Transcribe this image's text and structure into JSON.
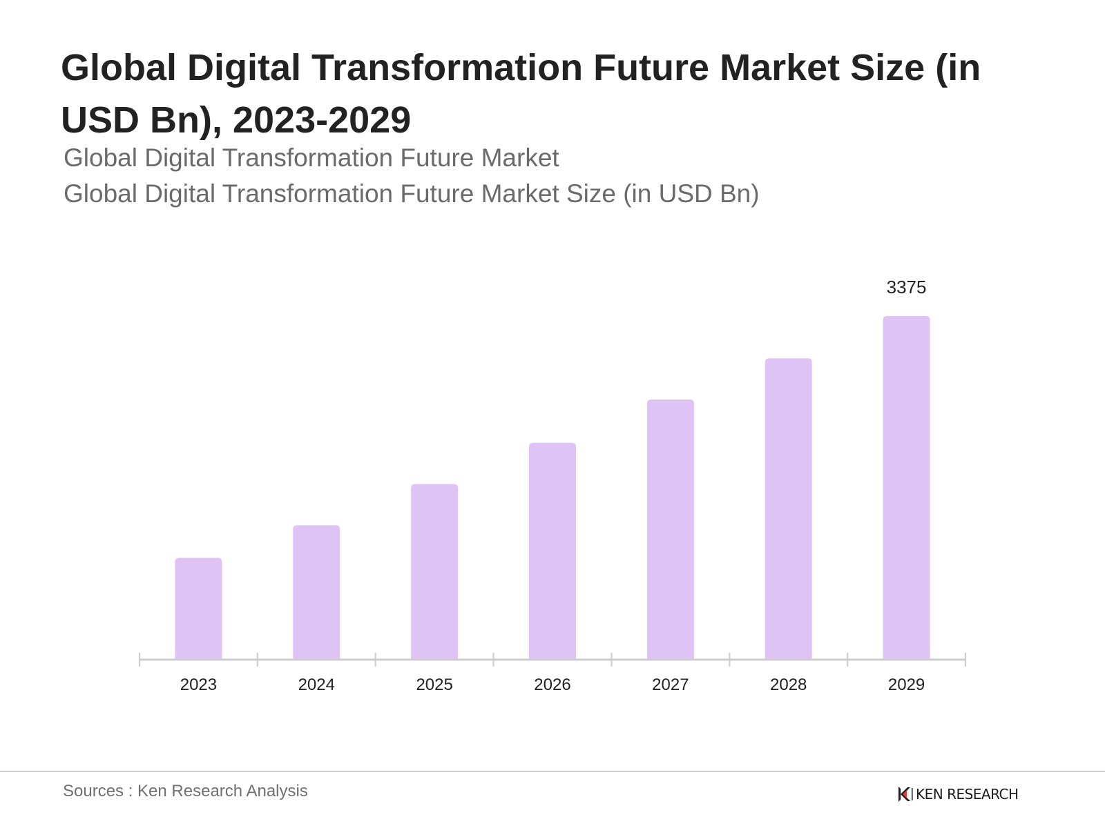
{
  "title": "Global Digital Transformation Future Market Size (in USD Bn), 2023-2029",
  "subtitles": [
    "Global Digital Transformation Future Market",
    "Global Digital Transformation Future Market Size (in USD Bn)"
  ],
  "footer": {
    "source": "Sources : Ken Research Analysis",
    "brand": "KEN RESEARCH",
    "brand_icon": "ken-research-logo-icon"
  },
  "colors": {
    "bar": "#dfc3f5",
    "axis": "#cccccc",
    "label": "#222222"
  },
  "chart_data": {
    "type": "bar",
    "title": "Global Digital Transformation Future Market Size (in USD Bn), 2023-2029",
    "xlabel": "",
    "ylabel": "",
    "categories": [
      "2023",
      "2024",
      "2025",
      "2026",
      "2027",
      "2028",
      "2029"
    ],
    "values": [
      1000,
      1320,
      1725,
      2130,
      2555,
      2960,
      3375
    ],
    "data_labels": [
      "",
      "",
      "",
      "",
      "",
      "",
      "3375"
    ],
    "ylim": [
      0,
      3375
    ],
    "grid": false,
    "legend": "none"
  }
}
